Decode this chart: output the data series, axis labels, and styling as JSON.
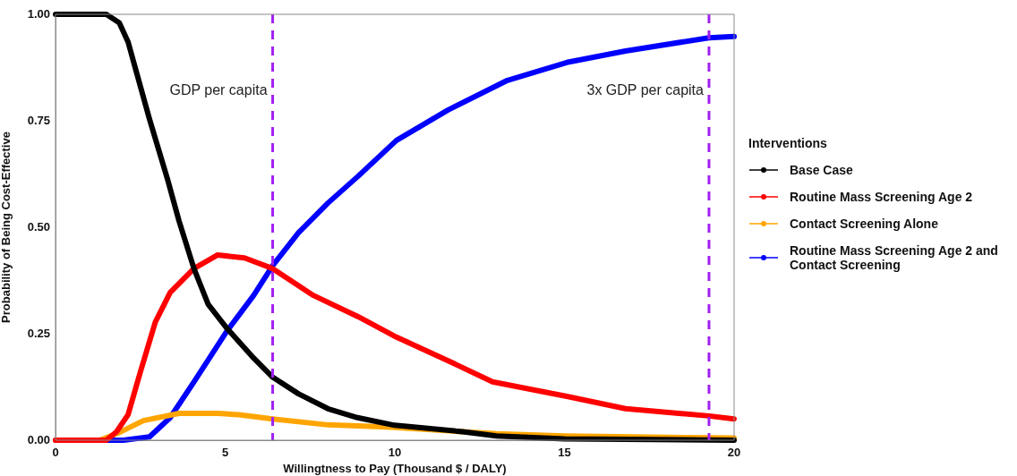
{
  "chart_data": {
    "type": "line",
    "xlabel": "Willingtness to Pay (Thousand $ / DALY)",
    "ylabel": "Probability of Being Cost-Effective",
    "legend_title": "Interventions",
    "legend": "right",
    "grid": false,
    "marker": "none",
    "line_style": "solid",
    "xlim": [
      0,
      20
    ],
    "xticks": [
      0,
      5,
      10,
      15,
      20
    ],
    "ylim": [
      0,
      1
    ],
    "yticks": [
      {
        "value": 0,
        "label": "0.00"
      },
      {
        "value": 0.25,
        "label": "0.25"
      },
      {
        "value": 0.5,
        "label": "0.50"
      },
      {
        "value": 0.75,
        "label": "0.75"
      },
      {
        "value": 1,
        "label": "1.00"
      }
    ],
    "series": [
      {
        "name": "Base Case",
        "color": "#000000",
        "x": [
          0,
          1,
          1.5,
          1.88,
          2.14,
          2.4,
          2.77,
          3.3,
          3.64,
          4.08,
          4.5,
          5.05,
          5.84,
          6.4,
          7.16,
          8.03,
          8.9,
          10,
          12,
          13,
          15,
          20
        ],
        "values": [
          1,
          1,
          1,
          0.98,
          0.935,
          0.86,
          0.754,
          0.613,
          0.515,
          0.403,
          0.319,
          0.263,
          0.193,
          0.148,
          0.109,
          0.074,
          0.053,
          0.035,
          0.02,
          0.01,
          0.003,
          0
        ]
      },
      {
        "name": "Routine Mass Screening Age 2",
        "color": "#ff0000",
        "x": [
          0,
          1.5,
          1.8,
          2.14,
          2.5,
          2.94,
          3.38,
          4.08,
          4.78,
          5.57,
          6.4,
          7.6,
          8.92,
          10.05,
          11.56,
          12.88,
          15.07,
          16.8,
          19.26,
          20
        ],
        "values": [
          0,
          0,
          0.02,
          0.06,
          0.16,
          0.277,
          0.347,
          0.403,
          0.435,
          0.428,
          0.403,
          0.34,
          0.29,
          0.242,
          0.187,
          0.137,
          0.103,
          0.074,
          0.057,
          0.05
        ]
      },
      {
        "name": "Contact Screening Alone",
        "color": "#ffa500",
        "x": [
          0,
          1.3,
          1.88,
          2.59,
          3.64,
          4.78,
          5.4,
          6.4,
          8.03,
          9.45,
          10,
          12,
          13,
          15,
          20
        ],
        "values": [
          0,
          0,
          0.018,
          0.046,
          0.063,
          0.063,
          0.06,
          0.05,
          0.036,
          0.032,
          0.03,
          0.02,
          0.015,
          0.01,
          0.005
        ]
      },
      {
        "name": "Routine Mass Screening Age 2 and Contact Screening",
        "color": "#0000ff",
        "x": [
          0,
          2,
          2.77,
          3.38,
          4.08,
          5.05,
          5.84,
          6.4,
          7.16,
          8.03,
          8.92,
          10.05,
          11.56,
          13.32,
          15.07,
          16.8,
          19.26,
          20
        ],
        "values": [
          0,
          0,
          0.008,
          0.053,
          0.137,
          0.256,
          0.34,
          0.41,
          0.487,
          0.557,
          0.62,
          0.704,
          0.775,
          0.845,
          0.887,
          0.914,
          0.945,
          0.948
        ]
      }
    ],
    "ref_lines": [
      {
        "axis": "x",
        "value": 6.4,
        "label": "GDP per capita",
        "color": "#a020f0",
        "line_style": "dashed"
      },
      {
        "axis": "x",
        "value": 19.26,
        "label": "3x GDP per capita",
        "color": "#a020f0",
        "line_style": "dashed"
      }
    ]
  }
}
